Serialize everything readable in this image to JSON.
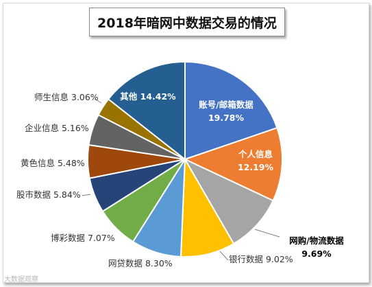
{
  "chart_data": {
    "type": "pie",
    "title": "2018年暗网中数据交易的情况",
    "slices": [
      {
        "label": "账号/邮箱数据",
        "value": 19.78,
        "value_label": "19.78%",
        "color": "#4472C4",
        "label_position": "inside"
      },
      {
        "label": "个人信息",
        "value": 12.19,
        "value_label": "12.19%",
        "color": "#ED7D31",
        "label_position": "inside"
      },
      {
        "label": "网购/物流数据",
        "value": 9.69,
        "value_label": "9.69%",
        "color": "#A5A5A5",
        "label_position": "outside"
      },
      {
        "label": "银行数据",
        "value": 9.02,
        "value_label": "9.02%",
        "color": "#FFC000",
        "label_position": "outside"
      },
      {
        "label": "网贷数据",
        "value": 8.3,
        "value_label": "8.30%",
        "color": "#5B9BD5",
        "label_position": "outside"
      },
      {
        "label": "博彩数据",
        "value": 7.07,
        "value_label": "7.07%",
        "color": "#70AD47",
        "label_position": "outside"
      },
      {
        "label": "股市数据",
        "value": 5.84,
        "value_label": "5.84%",
        "color": "#264478",
        "label_position": "outside"
      },
      {
        "label": "黄色信息",
        "value": 5.48,
        "value_label": "5.48%",
        "color": "#9E480E",
        "label_position": "outside"
      },
      {
        "label": "企业信息",
        "value": 5.16,
        "value_label": "5.16%",
        "color": "#636363",
        "label_position": "outside"
      },
      {
        "label": "师生信息",
        "value": 3.06,
        "value_label": "3.06%",
        "color": "#997300",
        "label_position": "outside"
      },
      {
        "label": "其他",
        "value": 14.42,
        "value_label": "14.42%",
        "color": "#255E91",
        "label_position": "inside"
      }
    ],
    "legend": "none"
  },
  "watermark": "大数据观察"
}
